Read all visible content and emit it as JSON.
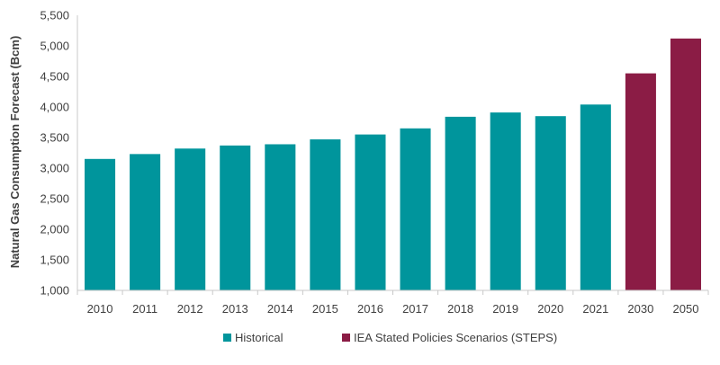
{
  "chart_data": {
    "type": "bar",
    "title": "",
    "xlabel": "",
    "ylabel": "Natural Gas Consumption Forecast (Bcm)",
    "ylim": [
      1000,
      5500
    ],
    "yticks": [
      1000,
      1500,
      2000,
      2500,
      3000,
      3500,
      4000,
      4500,
      5000,
      5500
    ],
    "ytick_labels": [
      "1,000",
      "1,500",
      "2,000",
      "2,500",
      "3,000",
      "3,500",
      "4,000",
      "4,500",
      "5,000",
      "5,500"
    ],
    "categories": [
      "2010",
      "2011",
      "2012",
      "2013",
      "2014",
      "2015",
      "2016",
      "2017",
      "2018",
      "2019",
      "2020",
      "2021",
      "2030",
      "2050"
    ],
    "values": [
      3150,
      3230,
      3320,
      3370,
      3390,
      3470,
      3550,
      3650,
      3840,
      3910,
      3850,
      4040,
      4550,
      5120
    ],
    "bar_series": [
      "historical",
      "historical",
      "historical",
      "historical",
      "historical",
      "historical",
      "historical",
      "historical",
      "historical",
      "historical",
      "historical",
      "historical",
      "steps",
      "steps"
    ],
    "series": [
      {
        "key": "historical",
        "name": "Historical",
        "color": "#00959c"
      },
      {
        "key": "steps",
        "name": "IEA Stated Policies Scenarios (STEPS)",
        "color": "#8b1c45"
      }
    ],
    "grid": false,
    "legend_position": "bottom"
  }
}
